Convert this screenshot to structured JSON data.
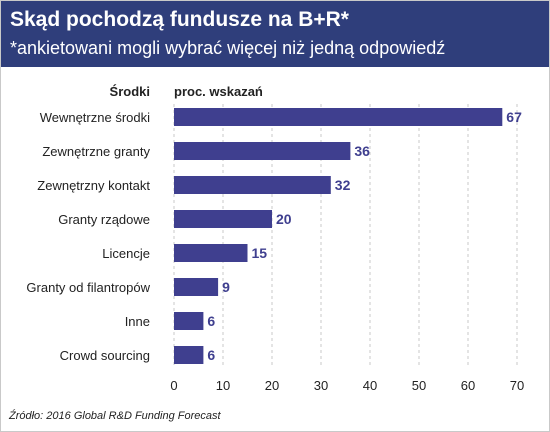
{
  "title": "Skąd pochodzą fundusze na B+R*",
  "subtitle": "*ankietowani mogli wybrać więcej niż jedną odpowiedź",
  "source": "Źródło: 2016 Global R&D Funding Forecast",
  "colors": {
    "header": "#2f3e7b",
    "bar": "#3f3f8f",
    "value_label": "#3f3f8f"
  },
  "chart_data": {
    "type": "bar",
    "orientation": "horizontal",
    "category_header": "Środki",
    "value_header": "proc. wskazań",
    "categories": [
      "Wewnętrzne środki",
      "Zewnętrzne granty",
      "Zewnętrzny kontakt",
      "Granty rządowe",
      "Licencje",
      "Granty od filantropów",
      "Inne",
      "Crowd sourcing"
    ],
    "values": [
      67,
      36,
      32,
      20,
      15,
      9,
      6,
      6
    ],
    "xlim": [
      0,
      70
    ],
    "xticks": [
      0,
      10,
      20,
      30,
      40,
      50,
      60,
      70
    ],
    "grid": "vertical-dashed"
  }
}
